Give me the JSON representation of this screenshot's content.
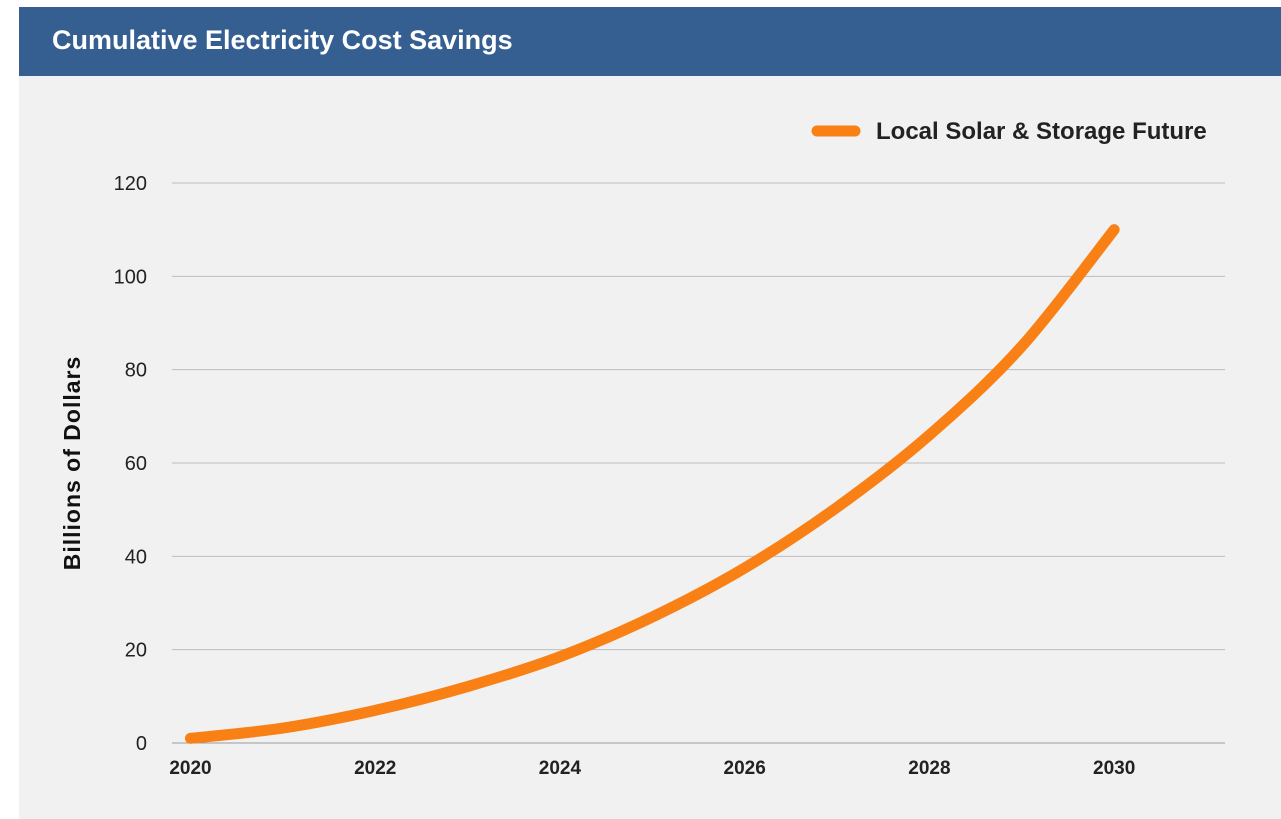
{
  "header": {
    "title": "Cumulative Electricity Cost Savings"
  },
  "colors": {
    "header_bg": "#365f91",
    "series": "#f98015",
    "plot_bg": "#f1f1f1"
  },
  "chart_data": {
    "type": "line",
    "title": "Cumulative Electricity Cost Savings",
    "xlabel": "",
    "ylabel": "Billions of Dollars",
    "xlim": [
      2019.8,
      2031.2
    ],
    "ylim": [
      0,
      120
    ],
    "yticks": [
      0,
      20,
      40,
      60,
      80,
      100,
      120
    ],
    "xticks": [
      2020,
      2022,
      2024,
      2026,
      2028,
      2030
    ],
    "grid": "horizontal",
    "legend_position": "top-right",
    "series": [
      {
        "name": "Local Solar & Storage Future",
        "color": "#f98015",
        "x": [
          2020,
          2021,
          2022,
          2023,
          2024,
          2025,
          2026,
          2027,
          2028,
          2029,
          2030
        ],
        "values": [
          1,
          3.2,
          7,
          12.1,
          18.5,
          27,
          37.5,
          50.5,
          66,
          85,
          110
        ]
      }
    ]
  }
}
